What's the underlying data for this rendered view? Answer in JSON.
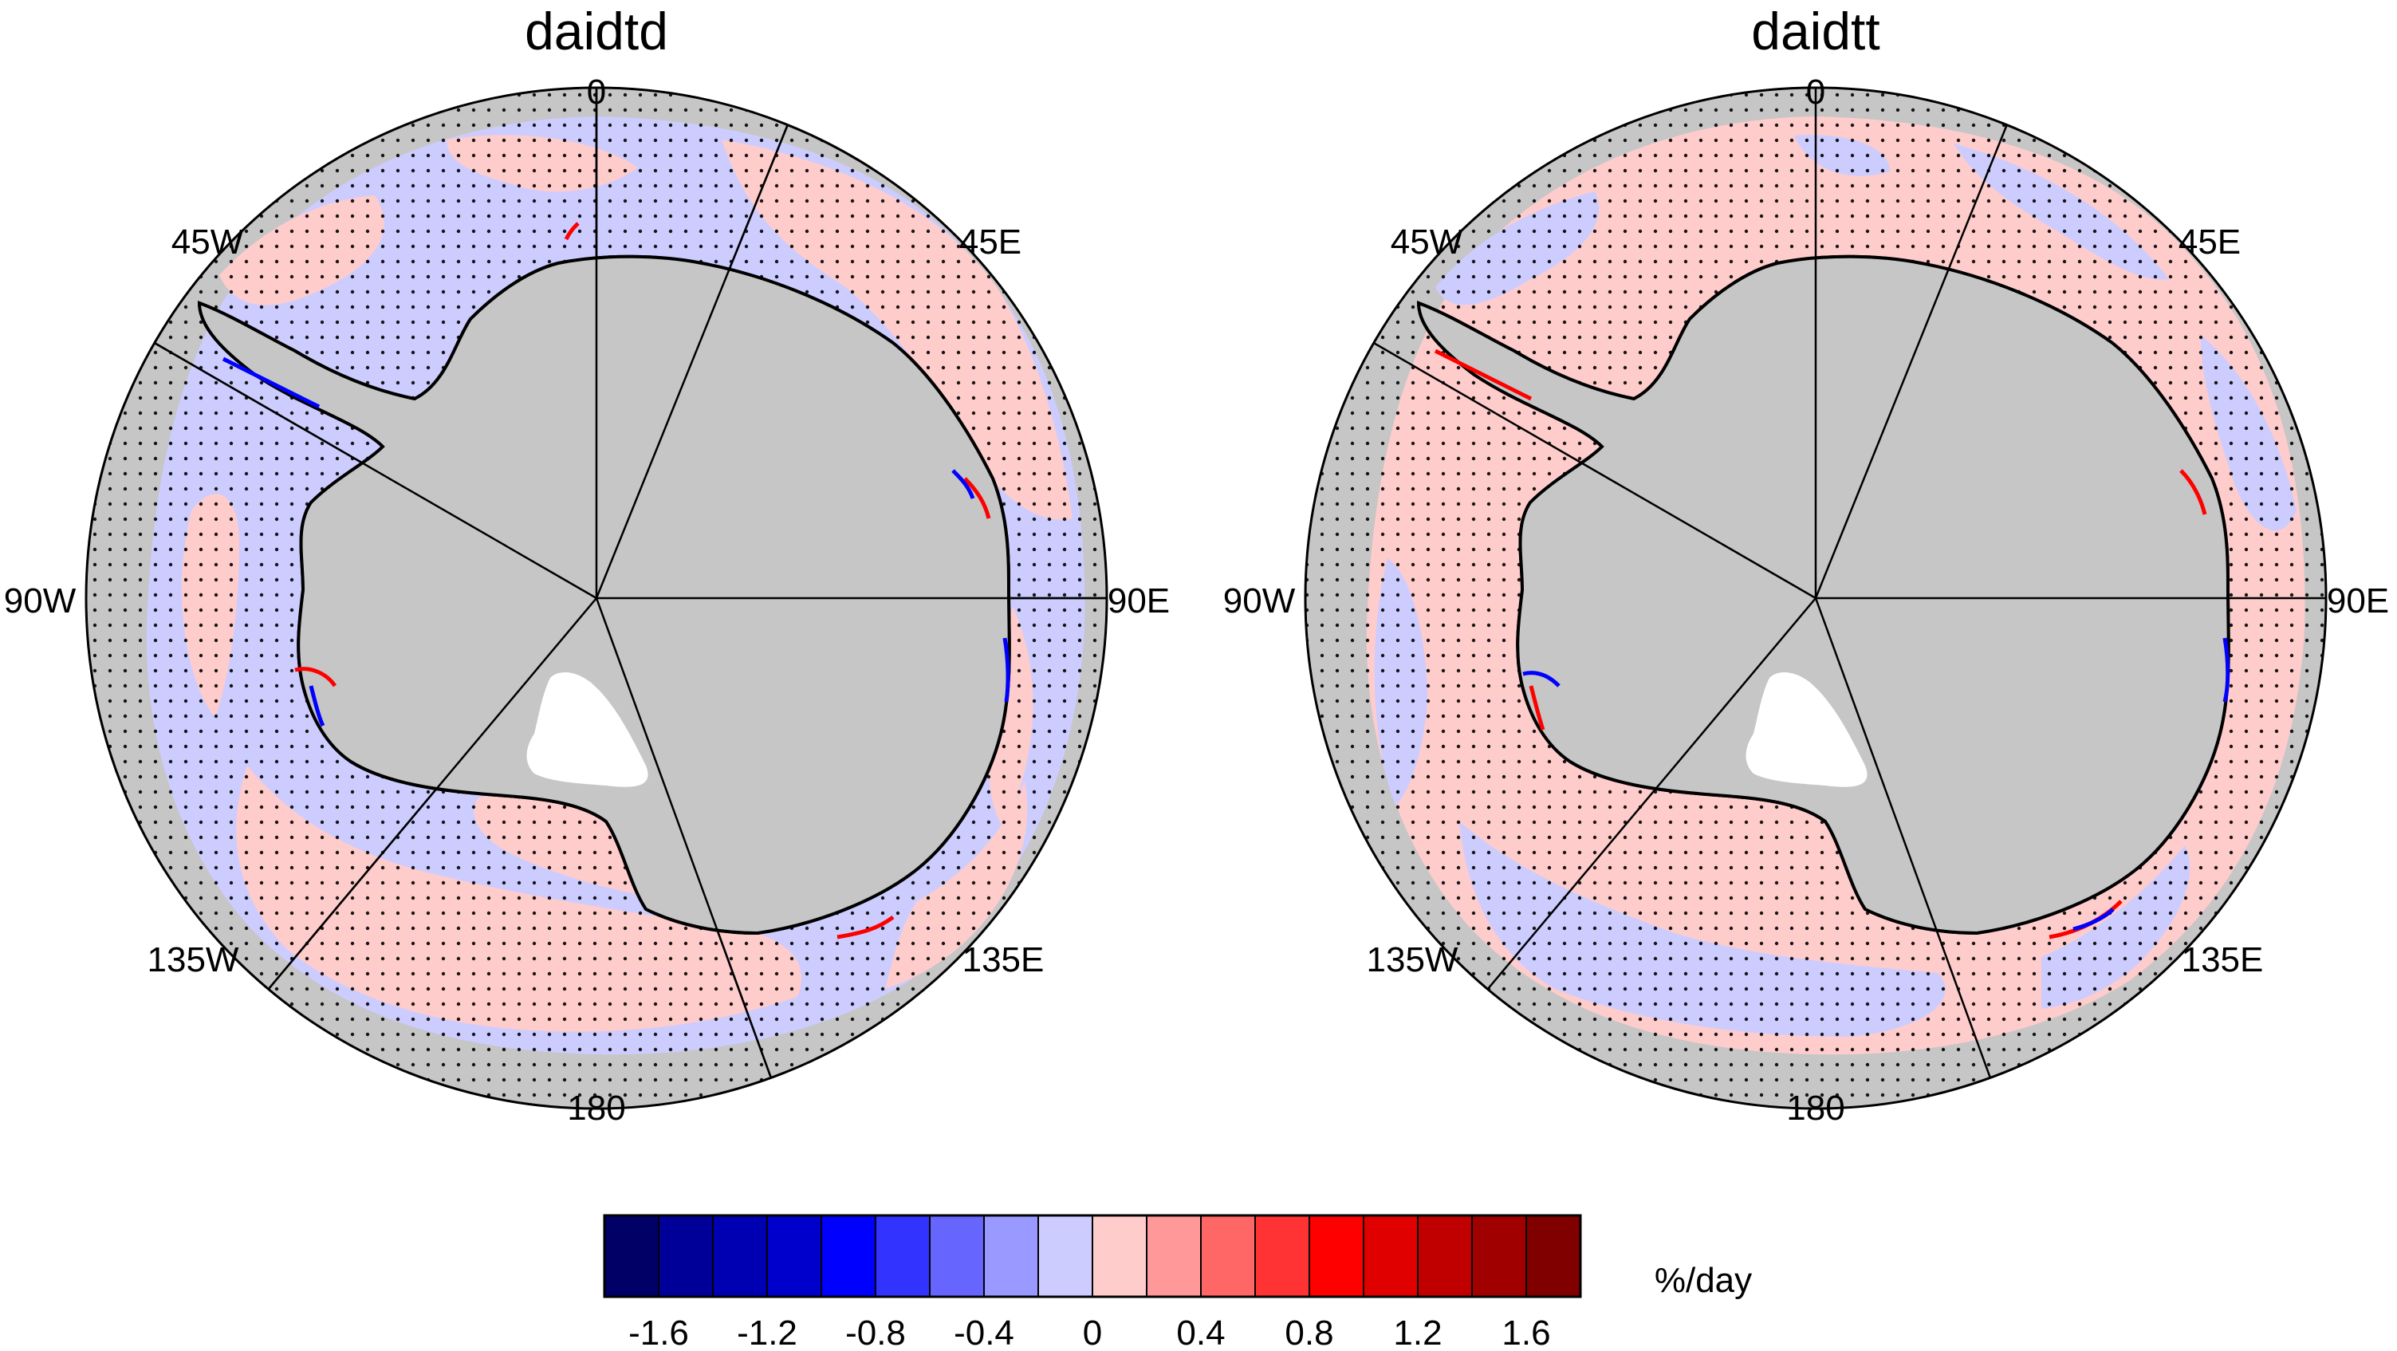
{
  "panels": [
    {
      "title": "daidtd",
      "longitude_labels": {
        "top": "0",
        "upper_left": "45W",
        "upper_right": "45E",
        "left": "90W",
        "right": "90E",
        "lower_left": "135W",
        "lower_right": "135E",
        "bottom": "180"
      }
    },
    {
      "title": "daidtt",
      "longitude_labels": {
        "top": "0",
        "upper_left": "45W",
        "upper_right": "45E",
        "left": "90W",
        "right": "90E",
        "lower_left": "135W",
        "lower_right": "135E",
        "bottom": "180"
      }
    }
  ],
  "colorbar": {
    "unit": "%/day",
    "tick_labels": [
      "-1.6",
      "-1.2",
      "-0.8",
      "-0.4",
      "0",
      "0.4",
      "0.8",
      "1.2",
      "1.6"
    ],
    "colors": [
      "#000066",
      "#000099",
      "#0000b3",
      "#0000cc",
      "#0000ff",
      "#3333ff",
      "#6666ff",
      "#9999ff",
      "#ccccff",
      "#ffcccc",
      "#ff9999",
      "#ff6666",
      "#ff3333",
      "#ff0000",
      "#e00000",
      "#c00000",
      "#a00000",
      "#800000"
    ]
  },
  "colors": {
    "land": "#c6c6c6",
    "ice_shelf": "#ffffff",
    "positive": "#ffcccc",
    "negative": "#ccccff"
  }
}
